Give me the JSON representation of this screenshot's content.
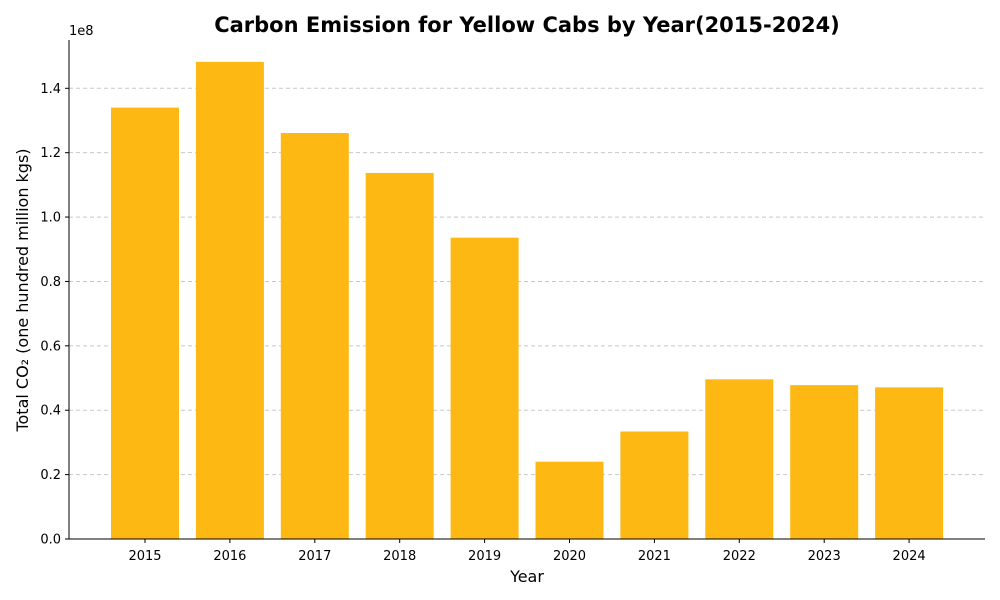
{
  "chart_data": {
    "type": "bar",
    "title": "Carbon Emission for Yellow Cabs by Year(2015-2024)",
    "xlabel": "Year",
    "ylabel": "Total CO₂ (one hundred million kgs)",
    "offset_label": "1e8",
    "categories": [
      "2015",
      "2016",
      "2017",
      "2018",
      "2019",
      "2020",
      "2021",
      "2022",
      "2023",
      "2024"
    ],
    "values": [
      134000000,
      148200000,
      126100000,
      113700000,
      93600000,
      24000000,
      33400000,
      49600000,
      47800000,
      47100000
    ],
    "ylim": [
      0,
      155000000
    ],
    "yticks": [
      0,
      20000000,
      40000000,
      60000000,
      80000000,
      100000000,
      120000000,
      140000000
    ],
    "ytick_labels": [
      "0.0",
      "0.2",
      "0.4",
      "0.6",
      "0.8",
      "1.0",
      "1.2",
      "1.4"
    ],
    "grid": true,
    "bar_color": "#FDB813"
  }
}
